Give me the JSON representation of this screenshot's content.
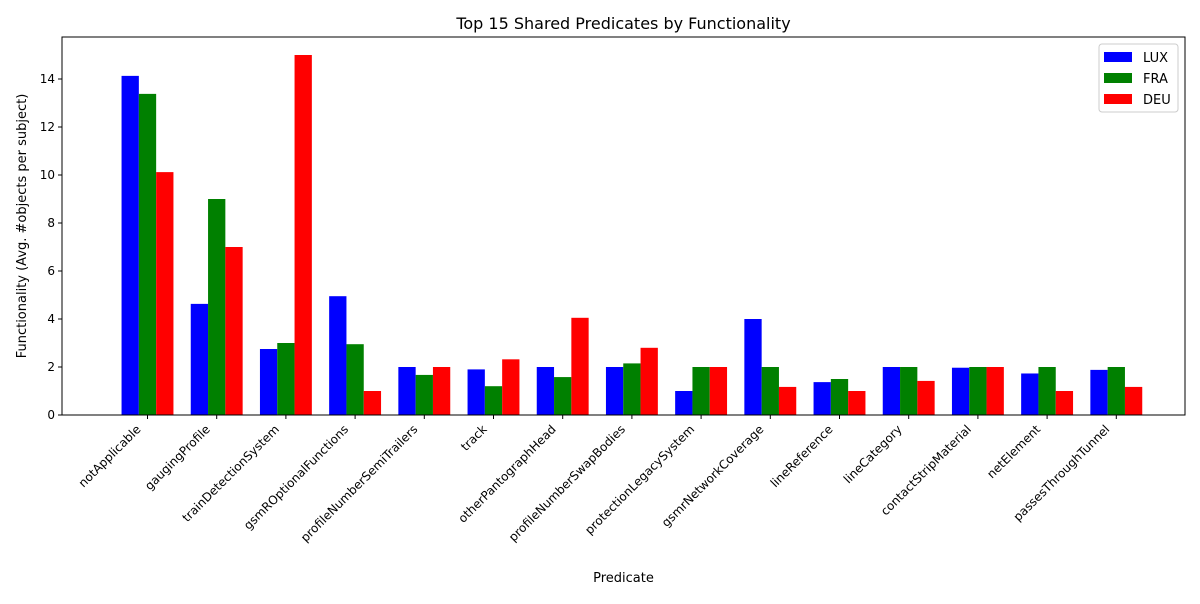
{
  "chart_data": {
    "type": "bar",
    "title": "Top 15 Shared Predicates by Functionality",
    "xlabel": "Predicate",
    "ylabel": "Functionality (Avg. #objects per subject)",
    "ylim": [
      0,
      15.75
    ],
    "yticks": [
      0,
      2,
      4,
      6,
      8,
      10,
      12,
      14
    ],
    "grid": false,
    "legend_position": "top-right",
    "categories": [
      "notApplicable",
      "gaugingProfile",
      "trainDetectionSystem",
      "gsmROptionalFunctions",
      "profileNumberSemiTrailers",
      "track",
      "otherPantographHead",
      "profileNumberSwapBodies",
      "protectionLegacySystem",
      "gsmrNetworkCoverage",
      "lineReference",
      "lineCategory",
      "contactStripMaterial",
      "netElement",
      "passesThroughTunnel"
    ],
    "series": [
      {
        "name": "LUX",
        "color": "#0000ff",
        "values": [
          14.13,
          4.63,
          2.75,
          4.95,
          2.0,
          1.9,
          2.0,
          2.0,
          1.0,
          4.0,
          1.37,
          2.0,
          1.97,
          1.73,
          1.88
        ]
      },
      {
        "name": "FRA",
        "color": "#008000",
        "values": [
          13.38,
          9.0,
          3.0,
          2.95,
          1.67,
          1.2,
          1.58,
          2.15,
          2.0,
          2.0,
          1.5,
          2.0,
          2.0,
          2.0,
          2.0
        ]
      },
      {
        "name": "DEU",
        "color": "#ff0000",
        "values": [
          10.12,
          7.0,
          15.0,
          1.0,
          2.0,
          2.32,
          4.05,
          2.8,
          2.0,
          1.17,
          1.0,
          1.42,
          2.0,
          1.0,
          1.17
        ]
      }
    ]
  }
}
